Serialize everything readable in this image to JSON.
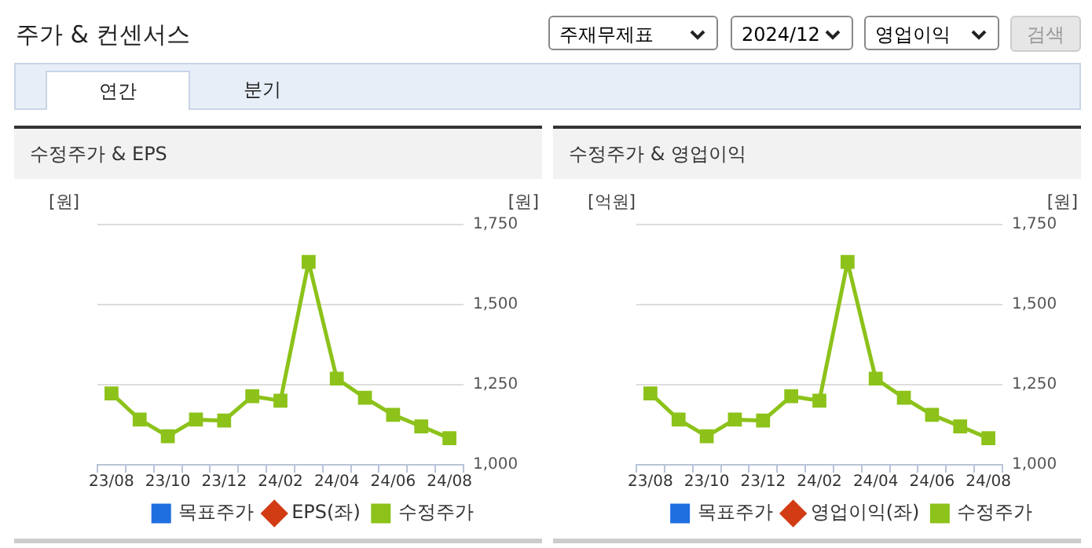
{
  "chart_data": [
    {
      "type": "other",
      "title": "주가 & 컨센서스",
      "annotations": [
        "주재무제표",
        "2024/12",
        "영업이익",
        "검색",
        "연간",
        "분기"
      ]
    },
    {
      "type": "line",
      "title": "수정주가 & EPS",
      "ylabel": "[원]",
      "y2label": "[원]",
      "categories": [
        "23/08",
        null,
        "23/10",
        null,
        "23/12",
        null,
        "24/02",
        null,
        "24/04",
        null,
        "24/06",
        null,
        "24/08"
      ],
      "series": [
        {
          "name": "목표주가",
          "color": "#1f6fe0",
          "marker": "square",
          "values": [
            null,
            null,
            null,
            null,
            null,
            null,
            null,
            null,
            null,
            null,
            null,
            null,
            null
          ]
        },
        {
          "name": "EPS(좌)",
          "color": "#d23c14",
          "marker": "diamond",
          "values": [
            null,
            null,
            null,
            null,
            null,
            null,
            null,
            null,
            null,
            null,
            null,
            null,
            null
          ]
        },
        {
          "name": "수정주가",
          "color": "#8cc21a",
          "marker": "square",
          "axis": "y2",
          "values": [
            1223,
            1141,
            1089,
            1141,
            1138,
            1214,
            1200,
            1633,
            1269,
            1209,
            1156,
            1120,
            1083
          ]
        }
      ],
      "y2lim": [
        1000,
        1750
      ],
      "y2ticks": [
        {
          "value": 1000,
          "label": "1,000"
        },
        {
          "value": 1250,
          "label": "1,250"
        },
        {
          "value": 1500,
          "label": "1,500"
        },
        {
          "value": 1750,
          "label": "1,750"
        }
      ],
      "grid": "y",
      "legend": "bottom"
    },
    {
      "type": "line",
      "title": "수정주가 & 영업이익",
      "ylabel": "[억원]",
      "y2label": "[원]",
      "categories": [
        "23/08",
        null,
        "23/10",
        null,
        "23/12",
        null,
        "24/02",
        null,
        "24/04",
        null,
        "24/06",
        null,
        "24/08"
      ],
      "series": [
        {
          "name": "목표주가",
          "color": "#1f6fe0",
          "marker": "square",
          "values": [
            null,
            null,
            null,
            null,
            null,
            null,
            null,
            null,
            null,
            null,
            null,
            null,
            null
          ]
        },
        {
          "name": "영업이익(좌)",
          "color": "#d23c14",
          "marker": "diamond",
          "values": [
            null,
            null,
            null,
            null,
            null,
            null,
            null,
            null,
            null,
            null,
            null,
            null,
            null
          ]
        },
        {
          "name": "수정주가",
          "color": "#8cc21a",
          "marker": "square",
          "axis": "y2",
          "values": [
            1223,
            1141,
            1089,
            1141,
            1138,
            1214,
            1200,
            1633,
            1269,
            1209,
            1156,
            1120,
            1083
          ]
        }
      ],
      "y2lim": [
        1000,
        1750
      ],
      "y2ticks": [
        {
          "value": 1000,
          "label": "1,000"
        },
        {
          "value": 1250,
          "label": "1,250"
        },
        {
          "value": 1500,
          "label": "1,500"
        },
        {
          "value": 1750,
          "label": "1,750"
        }
      ],
      "grid": "y",
      "legend": "bottom"
    }
  ]
}
